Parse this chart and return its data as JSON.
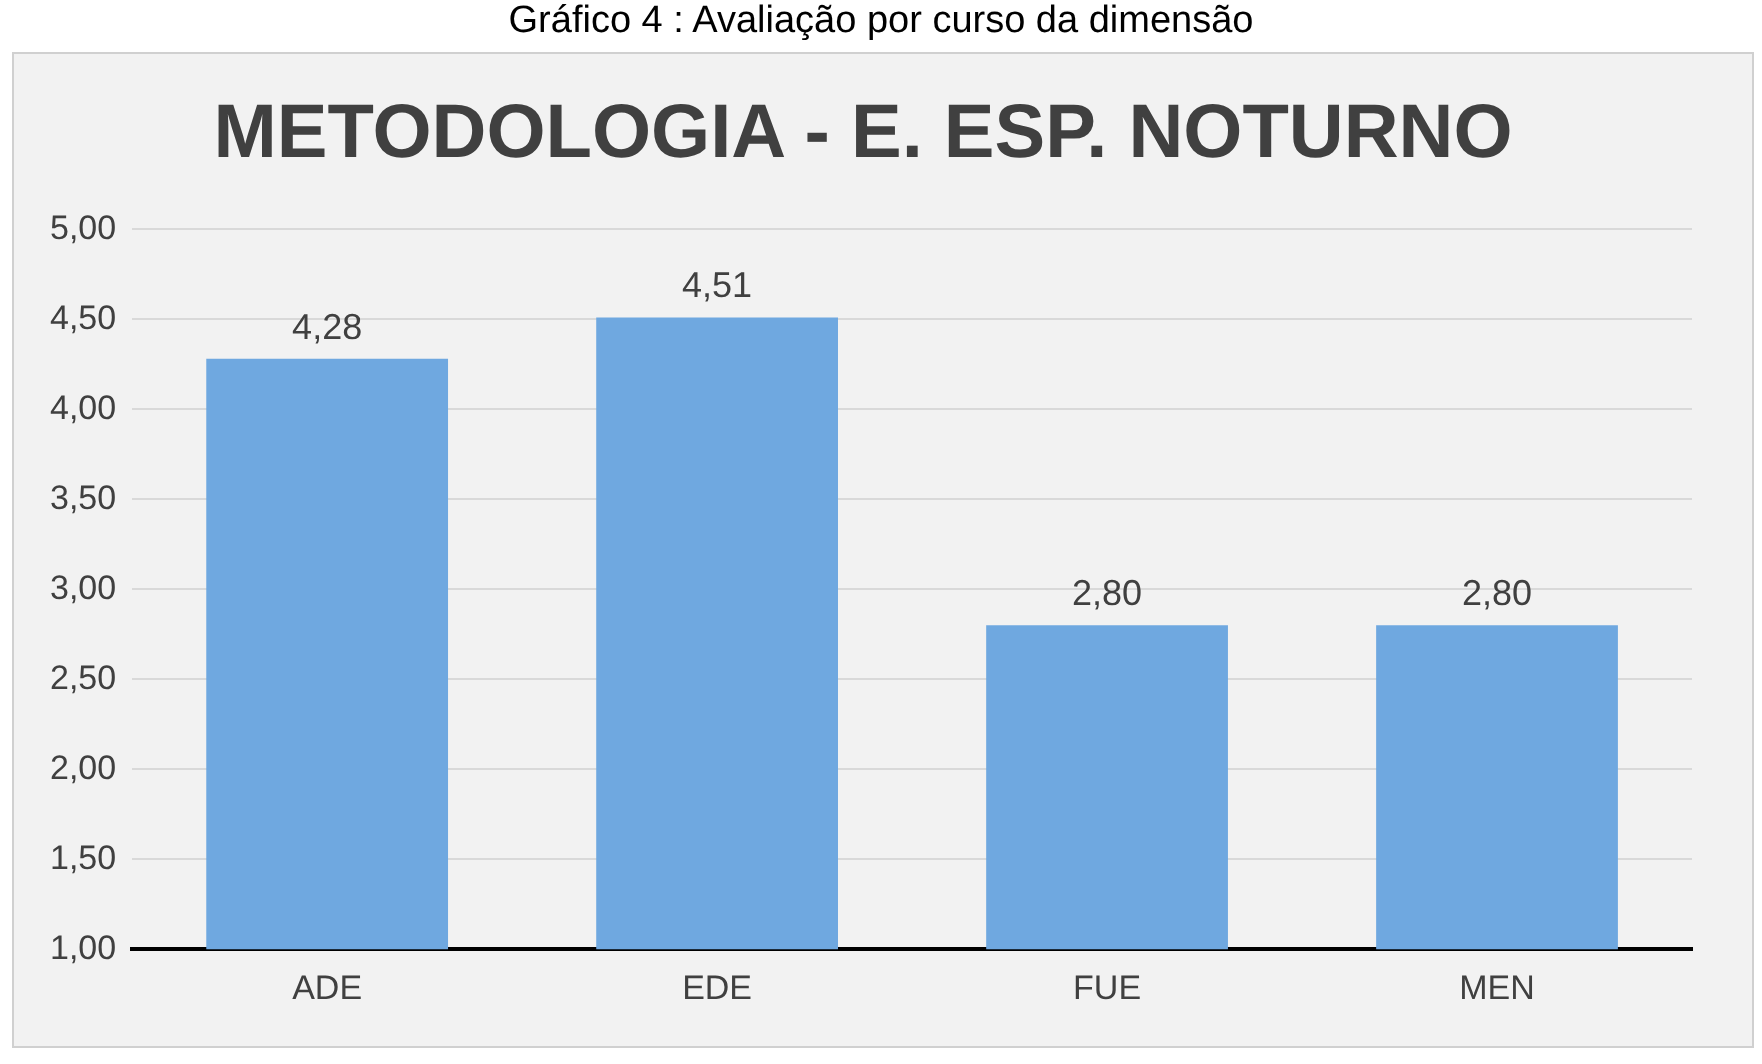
{
  "chart_data": {
    "type": "bar",
    "title": "METODOLOGIA - E. ESP. NOTURNO",
    "annotations": [
      "Gráfico 4 :  Avaliação por curso da dimensão"
    ],
    "categories": [
      "ADE",
      "EDE",
      "FUE",
      "MEN"
    ],
    "values": [
      4.28,
      4.51,
      2.8,
      2.8
    ],
    "value_labels": [
      "4,28",
      "4,51",
      "2,80",
      "2,80"
    ],
    "color": "#6fa8e0",
    "ylim": [
      1,
      5
    ],
    "yticks": [
      {
        "value": 1,
        "label": "1,00"
      },
      {
        "value": 1.5,
        "label": "1,50"
      },
      {
        "value": 2,
        "label": "2,00"
      },
      {
        "value": 2.5,
        "label": "2,50"
      },
      {
        "value": 3,
        "label": "3,00"
      },
      {
        "value": 3.5,
        "label": "3,50"
      },
      {
        "value": 4,
        "label": "4,00"
      },
      {
        "value": 4.5,
        "label": "4,50"
      },
      {
        "value": 5,
        "label": "5,00"
      }
    ],
    "grid": "y",
    "legend": false
  }
}
